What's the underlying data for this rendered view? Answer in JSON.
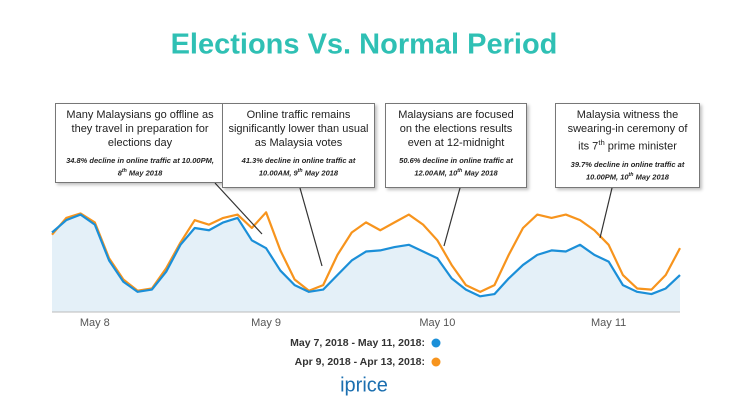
{
  "chart_data": {
    "type": "line",
    "title": "Elections Vs. Normal Period",
    "categories": [
      null,
      null,
      null,
      "May 8",
      null,
      null,
      null,
      null,
      null,
      null,
      null,
      null,
      null,
      null,
      null,
      "May 9",
      null,
      null,
      null,
      null,
      null,
      null,
      null,
      null,
      null,
      null,
      null,
      "May 10",
      null,
      null,
      null,
      null,
      null,
      null,
      null,
      null,
      null,
      null,
      null,
      "May 11",
      null,
      null,
      null,
      null,
      null
    ],
    "ylim": [
      0,
      100
    ],
    "area": true,
    "series": [
      {
        "name": "May 7, 2018 - May 11, 2018:",
        "color": "#1b8fd8",
        "fill": "#e4f0f8",
        "values": [
          71,
          82,
          87,
          78,
          46,
          27,
          18,
          20,
          36,
          60,
          75,
          73,
          80,
          84,
          64,
          57,
          37,
          24,
          18,
          20,
          33,
          46,
          54,
          55,
          58,
          60,
          54,
          48,
          30,
          20,
          14,
          16,
          30,
          42,
          51,
          55,
          54,
          60,
          51,
          45,
          24,
          18,
          16,
          21,
          33
        ]
      },
      {
        "name": "Apr 9, 2018 - Apr 13, 2018:",
        "color": "#f7941d",
        "values": [
          69,
          84,
          88,
          80,
          48,
          29,
          19,
          21,
          39,
          62,
          82,
          78,
          84,
          87,
          75,
          89,
          55,
          29,
          19,
          24,
          51,
          71,
          80,
          73,
          80,
          87,
          78,
          64,
          42,
          24,
          18,
          24,
          51,
          75,
          87,
          84,
          87,
          82,
          73,
          60,
          33,
          21,
          20,
          33,
          57
        ]
      }
    ],
    "annotations": [
      {
        "text": "Many Malaysians go offline as they travel in preparation for elections day",
        "note": [
          "34.8% decline in online traffic at 10.00PM, 8",
          "th",
          " May 2018"
        ]
      },
      {
        "text": "Online traffic remains significantly lower than usual as Malaysia votes",
        "note": [
          "41.3% decline in online traffic at 10.00AM, 9",
          "th",
          " May 2018"
        ]
      },
      {
        "text": "Malaysians are focused on the elections results even at 12-midnight",
        "note": [
          "50.6% decline in online traffic at 12.00AM, 10",
          "th",
          " May 2018"
        ]
      },
      {
        "text": [
          "Malaysia witness the swearing-in ceremony of its 7",
          "th",
          " prime minister"
        ],
        "note": [
          "39.7% decline in online traffic at 10.00PM, 10",
          "th",
          " May 2018"
        ]
      }
    ],
    "logo": "iprice"
  }
}
